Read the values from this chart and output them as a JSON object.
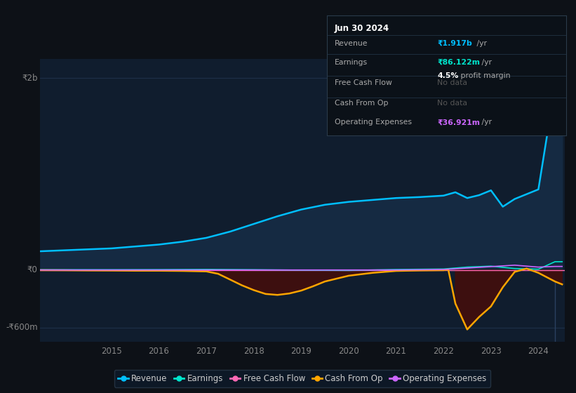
{
  "bg_color": "#0d1117",
  "plot_bg_color": "#101d2e",
  "y2b_label": "₹2b",
  "y0_label": "₹0",
  "yneg600_label": "-₹600m",
  "ylim": [
    -750000000,
    2200000000
  ],
  "revenue_color": "#00bfff",
  "earnings_color": "#00e5cc",
  "fcf_color": "#ff69b4",
  "cashfromop_color": "#ffa500",
  "opex_color": "#cc66ff",
  "fill_revenue_color": "#152a42",
  "fill_cashfromop_neg_color": "#3d0f0f",
  "legend_items": [
    {
      "label": "Revenue",
      "color": "#00bfff"
    },
    {
      "label": "Earnings",
      "color": "#00e5cc"
    },
    {
      "label": "Free Cash Flow",
      "color": "#ff69b4"
    },
    {
      "label": "Cash From Op",
      "color": "#ffa500"
    },
    {
      "label": "Operating Expenses",
      "color": "#cc66ff"
    }
  ],
  "tooltip": {
    "date": "Jun 30 2024",
    "revenue_label": "Revenue",
    "revenue_value": "₹1.917b",
    "revenue_suffix": " /yr",
    "earnings_label": "Earnings",
    "earnings_value": "₹86.122m",
    "earnings_suffix": " /yr",
    "profit_margin": "4.5%",
    "profit_margin_suffix": " profit margin",
    "fcf_label": "Free Cash Flow",
    "fcf_value": "No data",
    "cashop_label": "Cash From Op",
    "cashop_value": "No data",
    "opex_label": "Operating Expenses",
    "opex_value": "₹36.921m",
    "opex_suffix": " /yr"
  },
  "revenue_x": [
    2013.5,
    2014.0,
    2014.5,
    2015.0,
    2015.5,
    2016.0,
    2016.5,
    2017.0,
    2017.5,
    2018.0,
    2018.5,
    2019.0,
    2019.5,
    2020.0,
    2020.5,
    2021.0,
    2021.5,
    2022.0,
    2022.25,
    2022.5,
    2022.75,
    2023.0,
    2023.25,
    2023.5,
    2023.75,
    2024.0,
    2024.35,
    2024.5
  ],
  "revenue_y": [
    195000000,
    205000000,
    215000000,
    225000000,
    245000000,
    265000000,
    295000000,
    335000000,
    400000000,
    480000000,
    560000000,
    630000000,
    680000000,
    710000000,
    730000000,
    750000000,
    760000000,
    775000000,
    810000000,
    750000000,
    780000000,
    830000000,
    660000000,
    740000000,
    790000000,
    840000000,
    1917000000,
    1917000000
  ],
  "earnings_x": [
    2013.5,
    2015.0,
    2016.0,
    2017.0,
    2018.0,
    2019.0,
    2020.0,
    2021.0,
    2022.0,
    2022.5,
    2023.0,
    2023.5,
    2024.0,
    2024.35,
    2024.5
  ],
  "earnings_y": [
    3000000,
    3000000,
    4000000,
    6000000,
    3000000,
    -2000000,
    -5000000,
    5000000,
    10000000,
    30000000,
    40000000,
    15000000,
    8000000,
    86122000,
    86122000
  ],
  "cashfromop_x": [
    2013.5,
    2014.0,
    2014.5,
    2015.0,
    2015.5,
    2016.0,
    2016.5,
    2017.0,
    2017.25,
    2017.5,
    2017.75,
    2018.0,
    2018.25,
    2018.5,
    2018.75,
    2019.0,
    2019.25,
    2019.5,
    2020.0,
    2020.5,
    2021.0,
    2021.5,
    2022.0,
    2022.1,
    2022.25,
    2022.5,
    2022.75,
    2023.0,
    2023.25,
    2023.5,
    2023.75,
    2024.0,
    2024.35,
    2024.5
  ],
  "cashfromop_y": [
    -2000000,
    -3000000,
    -5000000,
    -6000000,
    -8000000,
    -8000000,
    -10000000,
    -15000000,
    -40000000,
    -100000000,
    -160000000,
    -210000000,
    -250000000,
    -260000000,
    -245000000,
    -215000000,
    -170000000,
    -120000000,
    -60000000,
    -30000000,
    -10000000,
    -5000000,
    -2000000,
    5000000,
    -350000000,
    -620000000,
    -490000000,
    -380000000,
    -180000000,
    -20000000,
    15000000,
    -30000000,
    -120000000,
    -150000000
  ],
  "opex_x": [
    2013.5,
    2015.0,
    2017.0,
    2019.0,
    2021.0,
    2022.0,
    2022.5,
    2023.0,
    2023.5,
    2024.0,
    2024.35,
    2024.5
  ],
  "opex_y": [
    0,
    0,
    0,
    0,
    0,
    5000000,
    20000000,
    35000000,
    50000000,
    30000000,
    36921000,
    36921000
  ],
  "xlabel_years": [
    "2015",
    "2016",
    "2017",
    "2018",
    "2019",
    "2020",
    "2021",
    "2022",
    "2023",
    "2024"
  ],
  "year_positions": [
    2015,
    2016,
    2017,
    2018,
    2019,
    2020,
    2021,
    2022,
    2023,
    2024
  ],
  "xlim": [
    2013.5,
    2024.55
  ],
  "vline_x": 2024.35
}
